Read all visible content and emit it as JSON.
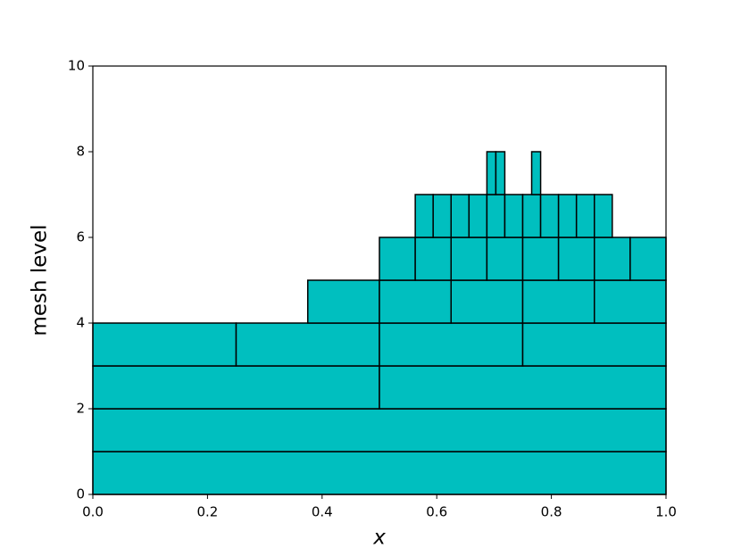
{
  "chart_data": {
    "type": "mesh",
    "xlabel": "x",
    "ylabel": "mesh level",
    "color": "#00bfbf",
    "edgecolor": "#000000",
    "xlim": [
      0,
      1
    ],
    "ylim": [
      0,
      10
    ],
    "xticks": [
      {
        "value": 0,
        "label": "0.0"
      },
      {
        "value": 0.2,
        "label": "0.2"
      },
      {
        "value": 0.4,
        "label": "0.4"
      },
      {
        "value": 0.6,
        "label": "0.6"
      },
      {
        "value": 0.8,
        "label": "0.8"
      },
      {
        "value": 1,
        "label": "1.0"
      }
    ],
    "yticks": [
      0,
      2,
      4,
      6,
      8,
      10
    ],
    "cells": [
      {
        "x": [
          0,
          1
        ],
        "y": [
          0,
          1
        ]
      },
      {
        "x": [
          0,
          1
        ],
        "y": [
          1,
          2
        ]
      },
      {
        "x": [
          0,
          0.5
        ],
        "y": [
          2,
          3
        ]
      },
      {
        "x": [
          0.5,
          1
        ],
        "y": [
          2,
          3
        ]
      },
      {
        "x": [
          0,
          0.25
        ],
        "y": [
          3,
          4
        ]
      },
      {
        "x": [
          0.25,
          0.5
        ],
        "y": [
          3,
          4
        ]
      },
      {
        "x": [
          0.5,
          0.75
        ],
        "y": [
          3,
          4
        ]
      },
      {
        "x": [
          0.75,
          1
        ],
        "y": [
          3,
          4
        ]
      },
      {
        "x": [
          0.375,
          0.5
        ],
        "y": [
          4,
          5
        ]
      },
      {
        "x": [
          0.5,
          0.625
        ],
        "y": [
          4,
          5
        ]
      },
      {
        "x": [
          0.625,
          0.75
        ],
        "y": [
          4,
          5
        ]
      },
      {
        "x": [
          0.75,
          0.875
        ],
        "y": [
          4,
          5
        ]
      },
      {
        "x": [
          0.875,
          1
        ],
        "y": [
          4,
          5
        ]
      },
      {
        "x": [
          0.5,
          0.5625
        ],
        "y": [
          5,
          6
        ]
      },
      {
        "x": [
          0.5625,
          0.625
        ],
        "y": [
          5,
          6
        ]
      },
      {
        "x": [
          0.625,
          0.6875
        ],
        "y": [
          5,
          6
        ]
      },
      {
        "x": [
          0.6875,
          0.75
        ],
        "y": [
          5,
          6
        ]
      },
      {
        "x": [
          0.75,
          0.8125
        ],
        "y": [
          5,
          6
        ]
      },
      {
        "x": [
          0.8125,
          0.875
        ],
        "y": [
          5,
          6
        ]
      },
      {
        "x": [
          0.875,
          0.9375
        ],
        "y": [
          5,
          6
        ]
      },
      {
        "x": [
          0.9375,
          1
        ],
        "y": [
          5,
          6
        ]
      },
      {
        "x": [
          0.5625,
          0.59375
        ],
        "y": [
          6,
          7
        ]
      },
      {
        "x": [
          0.59375,
          0.625
        ],
        "y": [
          6,
          7
        ]
      },
      {
        "x": [
          0.625,
          0.65625
        ],
        "y": [
          6,
          7
        ]
      },
      {
        "x": [
          0.65625,
          0.6875
        ],
        "y": [
          6,
          7
        ]
      },
      {
        "x": [
          0.6875,
          0.71875
        ],
        "y": [
          6,
          7
        ]
      },
      {
        "x": [
          0.71875,
          0.75
        ],
        "y": [
          6,
          7
        ]
      },
      {
        "x": [
          0.75,
          0.78125
        ],
        "y": [
          6,
          7
        ]
      },
      {
        "x": [
          0.78125,
          0.8125
        ],
        "y": [
          6,
          7
        ]
      },
      {
        "x": [
          0.8125,
          0.84375
        ],
        "y": [
          6,
          7
        ]
      },
      {
        "x": [
          0.84375,
          0.875
        ],
        "y": [
          6,
          7
        ]
      },
      {
        "x": [
          0.875,
          0.90625
        ],
        "y": [
          6,
          7
        ]
      },
      {
        "x": [
          0.6875,
          0.703125
        ],
        "y": [
          7,
          8
        ]
      },
      {
        "x": [
          0.703125,
          0.71875
        ],
        "y": [
          7,
          8
        ]
      },
      {
        "x": [
          0.765625,
          0.78125
        ],
        "y": [
          7,
          8
        ]
      }
    ]
  }
}
